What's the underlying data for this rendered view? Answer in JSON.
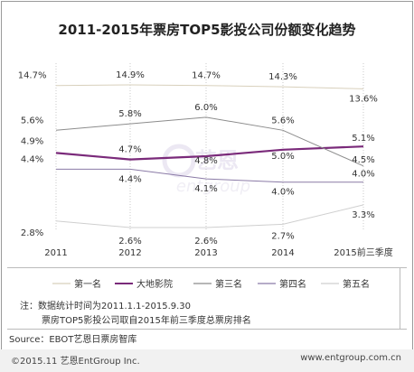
{
  "title": "2011-2015年票房TOP5影投公司份额变化趋势",
  "notes": [
    "注：数据统计时间为2011.1.1-2015.9.30",
    "票房TOP5影投公司取自2015年前三季度总票房排名"
  ],
  "source": "Source：EBOT艺恩日票房智库",
  "copyright": "©2015.11 艺恩EntGroup Inc.",
  "website": "www.entgroup.com.cn",
  "watermark": {
    "cn": "艺恩",
    "en": "entgroup"
  },
  "chart_data": {
    "type": "line",
    "categories": [
      "2011",
      "2012",
      "2013",
      "2014",
      "2015前三季度"
    ],
    "series": [
      {
        "name": "第一名",
        "values": [
          14.7,
          14.9,
          14.7,
          14.3,
          13.6
        ],
        "labels": [
          "14.7%",
          "14.9%",
          "14.7%",
          "14.3%",
          "13.6%"
        ],
        "color": "#d8d0bc"
      },
      {
        "name": "大地影院",
        "values": [
          4.9,
          4.7,
          4.8,
          5.0,
          5.1
        ],
        "labels": [
          "4.9%",
          "4.7%",
          "4.8%",
          "5.0%",
          "5.1%"
        ],
        "color": "#7a2a7a"
      },
      {
        "name": "第三名",
        "values": [
          5.6,
          5.8,
          6.0,
          5.6,
          4.5
        ],
        "labels": [
          "5.6%",
          "5.8%",
          "6.0%",
          "5.6%",
          "4.5%"
        ],
        "color": "#8c8c8c"
      },
      {
        "name": "第四名",
        "values": [
          4.4,
          4.4,
          4.1,
          4.0,
          4.0
        ],
        "labels": [
          "4.4%",
          "4.4%",
          "4.1%",
          "4.0%",
          "4.0%"
        ],
        "color": "#8a7aa6"
      },
      {
        "name": "第五名",
        "values": [
          2.8,
          2.6,
          2.6,
          2.7,
          3.3
        ],
        "labels": [
          "2.8%",
          "2.6%",
          "2.6%",
          "2.7%",
          "3.3%"
        ],
        "color": "#cfcfcf"
      }
    ],
    "grid": false,
    "legend": "bottom"
  }
}
